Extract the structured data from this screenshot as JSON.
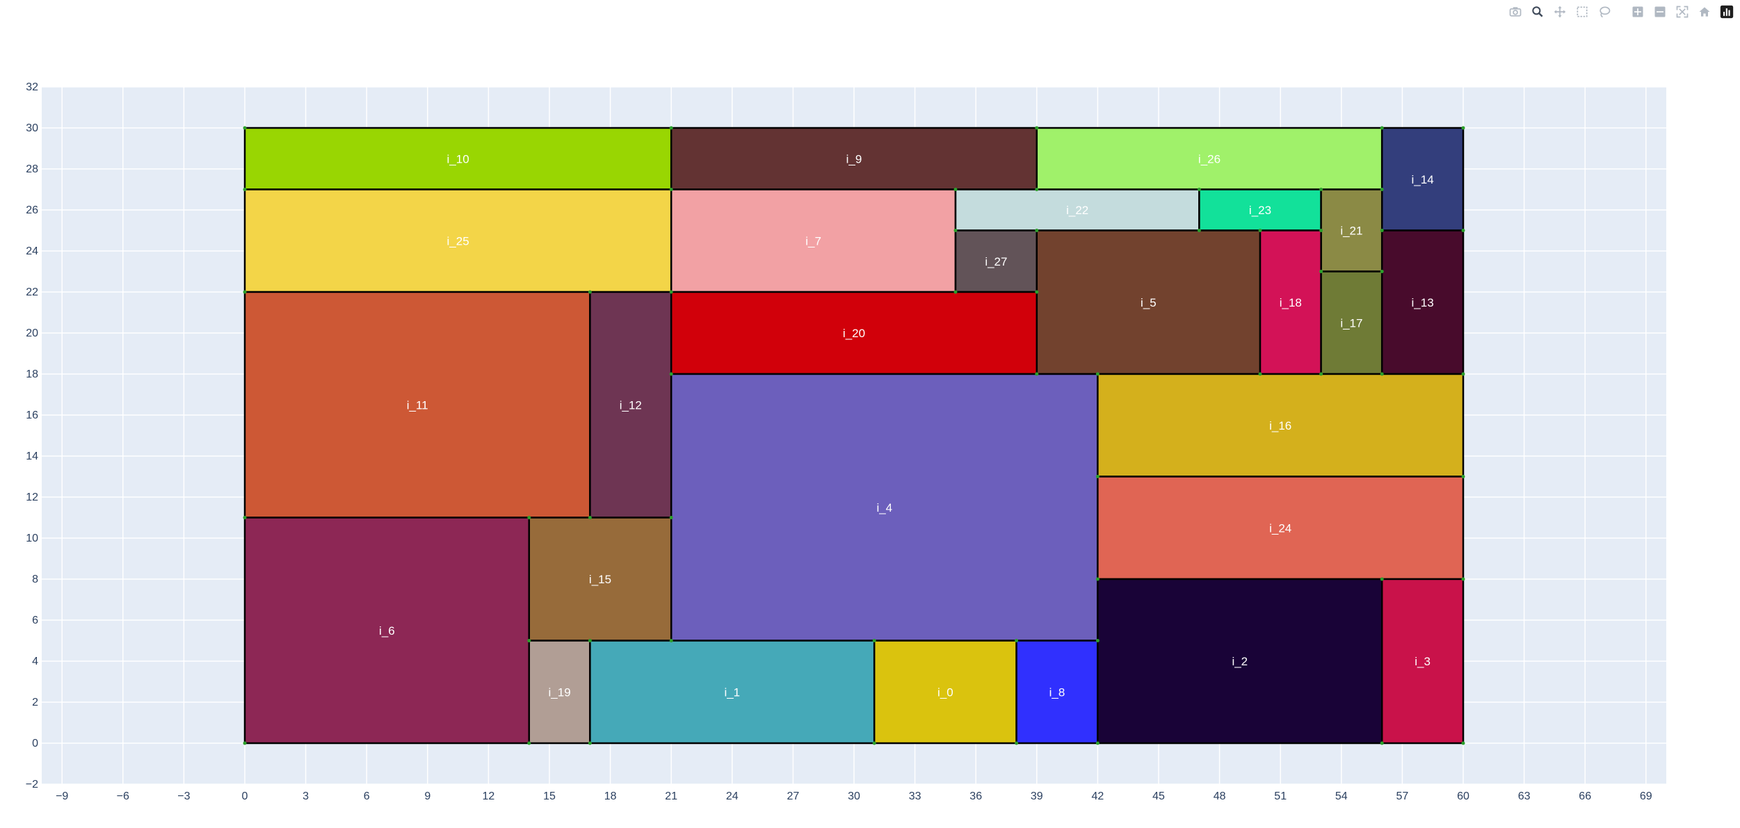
{
  "modebar": {
    "buttons": [
      {
        "name": "camera-icon"
      },
      {
        "name": "zoom-icon"
      },
      {
        "name": "pan-icon"
      },
      {
        "name": "box-select-icon"
      },
      {
        "name": "lasso-select-icon"
      },
      {
        "name": "zoom-in-icon"
      },
      {
        "name": "zoom-out-icon"
      },
      {
        "name": "autoscale-icon"
      },
      {
        "name": "reset-axes-icon"
      },
      {
        "name": "plotly-logo-icon"
      }
    ]
  },
  "chart_data": {
    "type": "treemap-rectangles",
    "title": "",
    "xlabel": "",
    "ylabel": "",
    "xlim": [
      -10,
      70
    ],
    "ylim": [
      -2,
      32
    ],
    "xticks": [
      -9,
      -6,
      -3,
      0,
      3,
      6,
      9,
      12,
      15,
      18,
      21,
      24,
      27,
      30,
      33,
      36,
      39,
      42,
      45,
      48,
      51,
      54,
      57,
      60,
      63,
      66,
      69
    ],
    "yticks": [
      -2,
      0,
      2,
      4,
      6,
      8,
      10,
      12,
      14,
      16,
      18,
      20,
      22,
      24,
      26,
      28,
      30,
      32
    ],
    "grid": true,
    "plot_bg": "#e5ecf6",
    "rects": [
      {
        "label": "i_10",
        "x0": 0,
        "x1": 21,
        "y0": 27,
        "y1": 30,
        "color": "#99d602"
      },
      {
        "label": "i_9",
        "x0": 21,
        "x1": 39,
        "y0": 27,
        "y1": 30,
        "color": "#633333"
      },
      {
        "label": "i_26",
        "x0": 39,
        "x1": 56,
        "y0": 27,
        "y1": 30,
        "color": "#a0f16a"
      },
      {
        "label": "i_14",
        "x0": 56,
        "x1": 60,
        "y0": 25,
        "y1": 30,
        "color": "#333e7c"
      },
      {
        "label": "i_25",
        "x0": 0,
        "x1": 21,
        "y0": 22,
        "y1": 27,
        "color": "#f3d548"
      },
      {
        "label": "i_7",
        "x0": 21,
        "x1": 35,
        "y0": 22,
        "y1": 27,
        "color": "#f2a1a4"
      },
      {
        "label": "i_22",
        "x0": 35,
        "x1": 47,
        "y0": 25,
        "y1": 27,
        "color": "#c4dcdd"
      },
      {
        "label": "i_23",
        "x0": 47,
        "x1": 53,
        "y0": 25,
        "y1": 27,
        "color": "#12e19a"
      },
      {
        "label": "i_21",
        "x0": 53,
        "x1": 56,
        "y0": 23,
        "y1": 27,
        "color": "#8b8a45"
      },
      {
        "label": "i_27",
        "x0": 35,
        "x1": 39,
        "y0": 22,
        "y1": 25,
        "color": "#625358"
      },
      {
        "label": "i_5",
        "x0": 39,
        "x1": 50,
        "y0": 18,
        "y1": 25,
        "color": "#72422e"
      },
      {
        "label": "i_18",
        "x0": 50,
        "x1": 53,
        "y0": 18,
        "y1": 25,
        "color": "#d31257"
      },
      {
        "label": "i_17",
        "x0": 53,
        "x1": 56,
        "y0": 18,
        "y1": 23,
        "color": "#6f7b36"
      },
      {
        "label": "i_13",
        "x0": 56,
        "x1": 60,
        "y0": 18,
        "y1": 25,
        "color": "#480b2c"
      },
      {
        "label": "i_11",
        "x0": 0,
        "x1": 17,
        "y0": 11,
        "y1": 22,
        "color": "#cd5835"
      },
      {
        "label": "i_12",
        "x0": 17,
        "x1": 21,
        "y0": 11,
        "y1": 22,
        "color": "#6e3553"
      },
      {
        "label": "i_20",
        "x0": 21,
        "x1": 39,
        "y0": 18,
        "y1": 22,
        "color": "#d1000a"
      },
      {
        "label": "i_4",
        "x0": 21,
        "x1": 42,
        "y0": 5,
        "y1": 18,
        "color": "#6c5fbc"
      },
      {
        "label": "i_16",
        "x0": 42,
        "x1": 60,
        "y0": 13,
        "y1": 18,
        "color": "#d4b01c"
      },
      {
        "label": "i_24",
        "x0": 42,
        "x1": 60,
        "y0": 8,
        "y1": 13,
        "color": "#e06554"
      },
      {
        "label": "i_6",
        "x0": 0,
        "x1": 14,
        "y0": 0,
        "y1": 11,
        "color": "#8d2755"
      },
      {
        "label": "i_15",
        "x0": 14,
        "x1": 21,
        "y0": 5,
        "y1": 11,
        "color": "#976b3a"
      },
      {
        "label": "i_19",
        "x0": 14,
        "x1": 17,
        "y0": 0,
        "y1": 5,
        "color": "#b19e95"
      },
      {
        "label": "i_1",
        "x0": 17,
        "x1": 31,
        "y0": 0,
        "y1": 5,
        "color": "#45a9b8"
      },
      {
        "label": "i_0",
        "x0": 31,
        "x1": 38,
        "y0": 0,
        "y1": 5,
        "color": "#dac30e"
      },
      {
        "label": "i_8",
        "x0": 38,
        "x1": 42,
        "y0": 0,
        "y1": 5,
        "color": "#3030fe"
      },
      {
        "label": "i_2",
        "x0": 42,
        "x1": 56,
        "y0": 0,
        "y1": 8,
        "color": "#190337"
      },
      {
        "label": "i_3",
        "x0": 56,
        "x1": 60,
        "y0": 0,
        "y1": 8,
        "color": "#c9124a"
      }
    ]
  }
}
